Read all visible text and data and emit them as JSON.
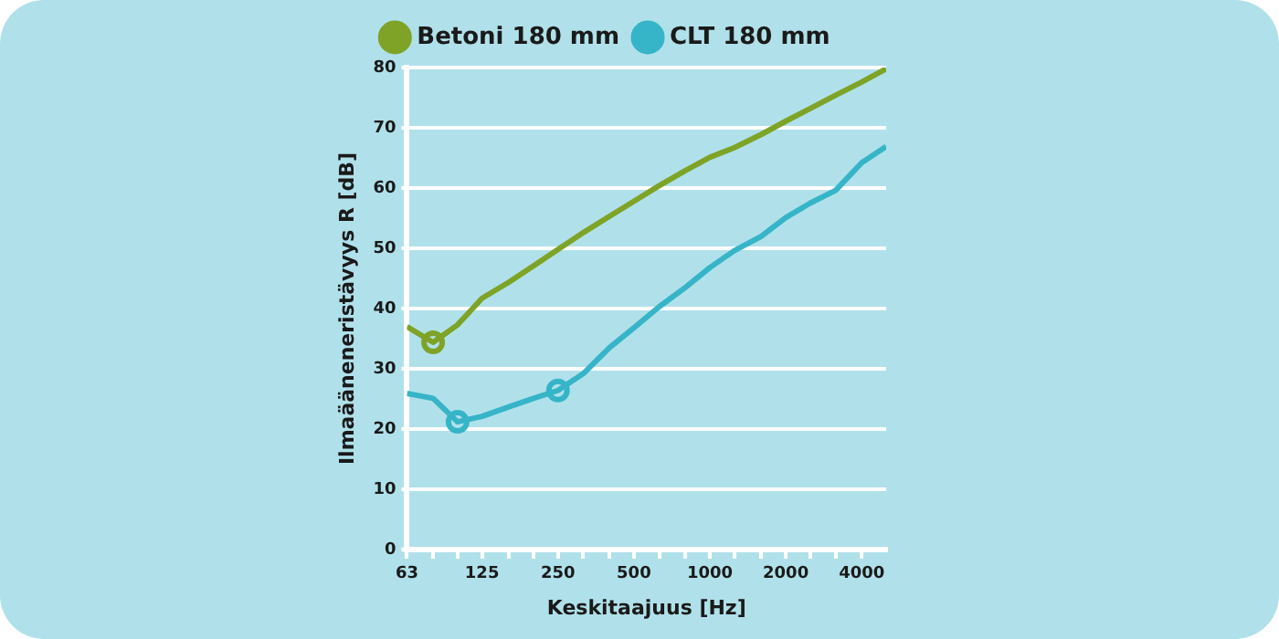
{
  "chart_data": {
    "type": "line",
    "xlabel": "Keskitaajuus [Hz]",
    "ylabel": "Ilmaääneneristävyys R [dB]",
    "log": "x",
    "xlim": [
      63,
      5000
    ],
    "ylim": [
      0,
      80
    ],
    "xticks": [
      63,
      {
        "value": 80,
        "label": null
      },
      {
        "value": 100,
        "label": null
      },
      125,
      {
        "value": 160,
        "label": null
      },
      {
        "value": 200,
        "label": null
      },
      250,
      {
        "value": 315,
        "label": null
      },
      {
        "value": 400,
        "label": null
      },
      500,
      {
        "value": 630,
        "label": null
      },
      {
        "value": 800,
        "label": null
      },
      1000,
      {
        "value": 1250,
        "label": null
      },
      {
        "value": 1600,
        "label": null
      },
      2000,
      {
        "value": 2500,
        "label": null
      },
      {
        "value": 3150,
        "label": null
      },
      4000
    ],
    "yticks": [
      0,
      10,
      20,
      30,
      40,
      50,
      60,
      70,
      80
    ],
    "grid": "y",
    "legend": "top",
    "marker": "none",
    "line_style": "solid",
    "x": [
      63,
      80,
      100,
      125,
      160,
      200,
      250,
      315,
      400,
      500,
      630,
      800,
      1000,
      1250,
      1600,
      2000,
      2500,
      3150,
      4000,
      5000
    ],
    "series": [
      {
        "name": "Betoni 180 mm",
        "color": "#7ea327",
        "values": [
          37.0,
          34.4,
          37.3,
          41.7,
          44.4,
          47.1,
          49.8,
          52.6,
          55.3,
          57.8,
          60.4,
          62.9,
          65.1,
          66.7,
          68.9,
          71.1,
          73.2,
          75.4,
          77.6,
          79.8
        ]
      },
      {
        "name": "CLT 180 mm",
        "color": "#36b4c8",
        "values": [
          25.9,
          25.1,
          21.2,
          22.1,
          23.7,
          25.1,
          26.4,
          29.2,
          33.5,
          36.8,
          40.3,
          43.5,
          46.8,
          49.6,
          52.0,
          55.1,
          57.5,
          59.6,
          64.2,
          66.9
        ]
      },
      {
        "type": "scatter",
        "marker": "circle",
        "color": "#7ea327",
        "x": [
          80
        ],
        "values": [
          34.4
        ]
      },
      {
        "type": "scatter",
        "marker": "circle",
        "color": "#36b4c8",
        "x": [
          100,
          250
        ],
        "values": [
          21.2,
          26.4
        ]
      }
    ]
  }
}
